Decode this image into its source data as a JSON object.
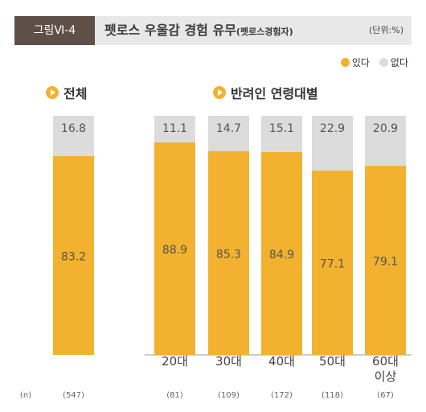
{
  "header": {
    "figure_label": "그림Ⅵ-4",
    "title": "펫로스 우울감 경험 유무",
    "title_note": "(펫로스경험자)",
    "unit": "(단위:%)"
  },
  "legend": [
    {
      "label": "있다",
      "color": "#f2b12e"
    },
    {
      "label": "없다",
      "color": "#dcdcdc"
    }
  ],
  "sections": {
    "total": "전체",
    "by_age": "반려인 연령대별"
  },
  "n_label": "(n)",
  "chart_data": {
    "type": "bar",
    "stacked": true,
    "ylim": [
      0,
      100
    ],
    "categories": [
      "전체",
      "20대",
      "30대",
      "40대",
      "50대",
      "60대\n이상"
    ],
    "show_category_label": [
      false,
      true,
      true,
      true,
      true,
      true
    ],
    "n": [
      "(547)",
      "(81)",
      "(109)",
      "(172)",
      "(118)",
      "(67)"
    ],
    "series": [
      {
        "name": "있다",
        "color": "#f2b12e",
        "values": [
          83.2,
          88.9,
          85.3,
          84.9,
          77.1,
          79.1
        ]
      },
      {
        "name": "없다",
        "color": "#dcdcdc",
        "values": [
          16.8,
          11.1,
          14.7,
          15.1,
          22.9,
          20.9
        ]
      }
    ]
  }
}
